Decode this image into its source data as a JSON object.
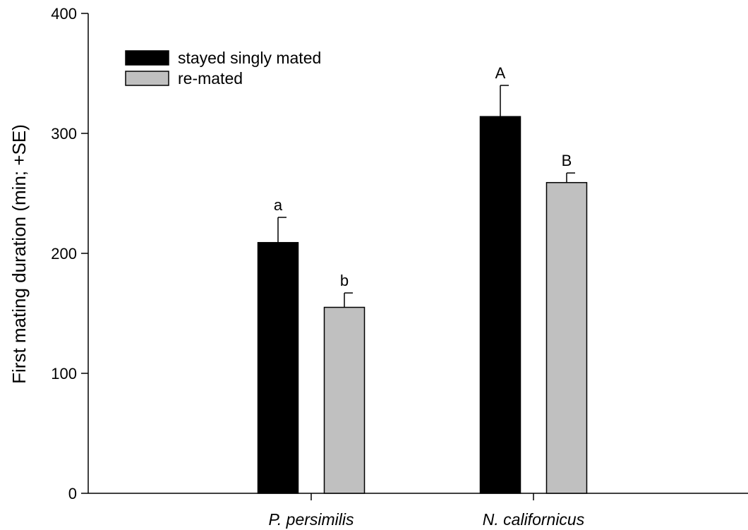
{
  "chart_data": {
    "type": "bar",
    "ylabel": "First mating duration (min; +SE)",
    "xlabel": "",
    "ylim": [
      0,
      400
    ],
    "yticks": [
      0,
      100,
      200,
      300,
      400
    ],
    "categories": [
      "P. persimilis",
      "N. californicus"
    ],
    "series": [
      {
        "name": "stayed singly mated",
        "color": "#000000",
        "values": [
          209,
          314
        ],
        "se": [
          21,
          26
        ],
        "labels": [
          "a",
          "A"
        ]
      },
      {
        "name": "re-mated",
        "color": "#c0c0c0",
        "values": [
          155,
          259
        ],
        "se": [
          12,
          8
        ],
        "labels": [
          "b",
          "B"
        ]
      }
    ],
    "legend_position": "top-left",
    "grid": false
  }
}
